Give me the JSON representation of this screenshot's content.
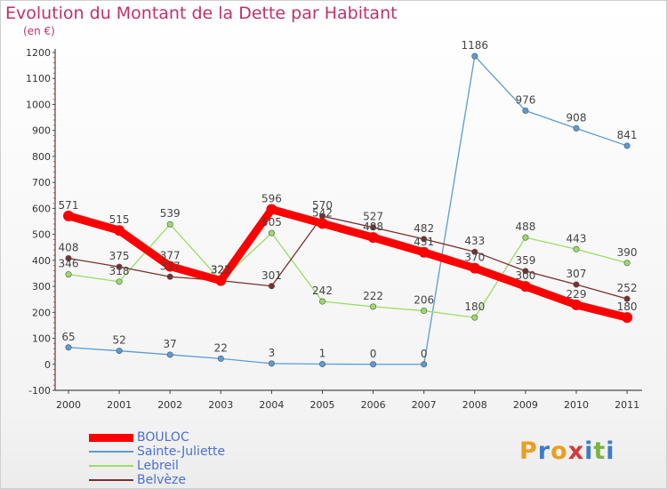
{
  "header": {
    "title": "Evolution du Montant de la Dette par Habitant",
    "subtitle": "(en €)"
  },
  "logo": {
    "letters": [
      "P",
      "r",
      "o",
      "x",
      "i",
      "t",
      "i"
    ],
    "colors": [
      "#e8a020",
      "#3d7cc9",
      "#e8a020",
      "#d23a3a",
      "#3d7cc9",
      "#7cb342",
      "#3d7cc9"
    ]
  },
  "chart_data": {
    "type": "line",
    "title": "Evolution du Montant de la Dette par Habitant",
    "ylabel": "(en €)",
    "x": [
      "2000",
      "2001",
      "2002",
      "2003",
      "2004",
      "2005",
      "2006",
      "2007",
      "2008",
      "2009",
      "2010",
      "2011"
    ],
    "ylim": [
      -100,
      1200
    ],
    "yticks": [
      -100,
      0,
      100,
      200,
      300,
      400,
      500,
      600,
      700,
      800,
      900,
      1000,
      1100,
      1200
    ],
    "grid": false,
    "legend": "bottom-left",
    "series": [
      {
        "name": "BOULOC",
        "color": "#ff0000",
        "values": [
          571,
          515,
          377,
          322,
          596,
          542,
          488,
          431,
          370,
          300,
          229,
          180
        ],
        "labels": [
          "571",
          "515",
          "377",
          "322",
          "596",
          "542",
          "488",
          "431",
          "370",
          "300",
          "229",
          "180"
        ]
      },
      {
        "name": "Sainte-Juliette",
        "color": "#5b9bd5",
        "values": [
          65,
          52,
          37,
          22,
          3,
          1,
          0,
          0,
          1186,
          976,
          908,
          841
        ],
        "labels": [
          "65",
          "52",
          "37",
          "22",
          "3",
          "1",
          "0",
          "0",
          "1186",
          "976",
          "908",
          "841"
        ]
      },
      {
        "name": "Lebreil",
        "color": "#99dd66",
        "values": [
          346,
          318,
          539,
          322,
          505,
          242,
          222,
          206,
          180,
          488,
          443,
          390
        ],
        "labels": [
          "346",
          "318",
          "539",
          "322",
          "505",
          "242",
          "222",
          "206",
          "180",
          "488",
          "443",
          "390"
        ]
      },
      {
        "name": "Belvèze",
        "color": "#7a2f2f",
        "values": [
          408,
          375,
          337,
          322,
          301,
          570,
          527,
          482,
          433,
          359,
          307,
          252
        ],
        "labels": [
          "408",
          "375",
          "337",
          "322",
          "301",
          "570",
          "527",
          "482",
          "433",
          "359",
          "307",
          "252"
        ]
      }
    ]
  }
}
